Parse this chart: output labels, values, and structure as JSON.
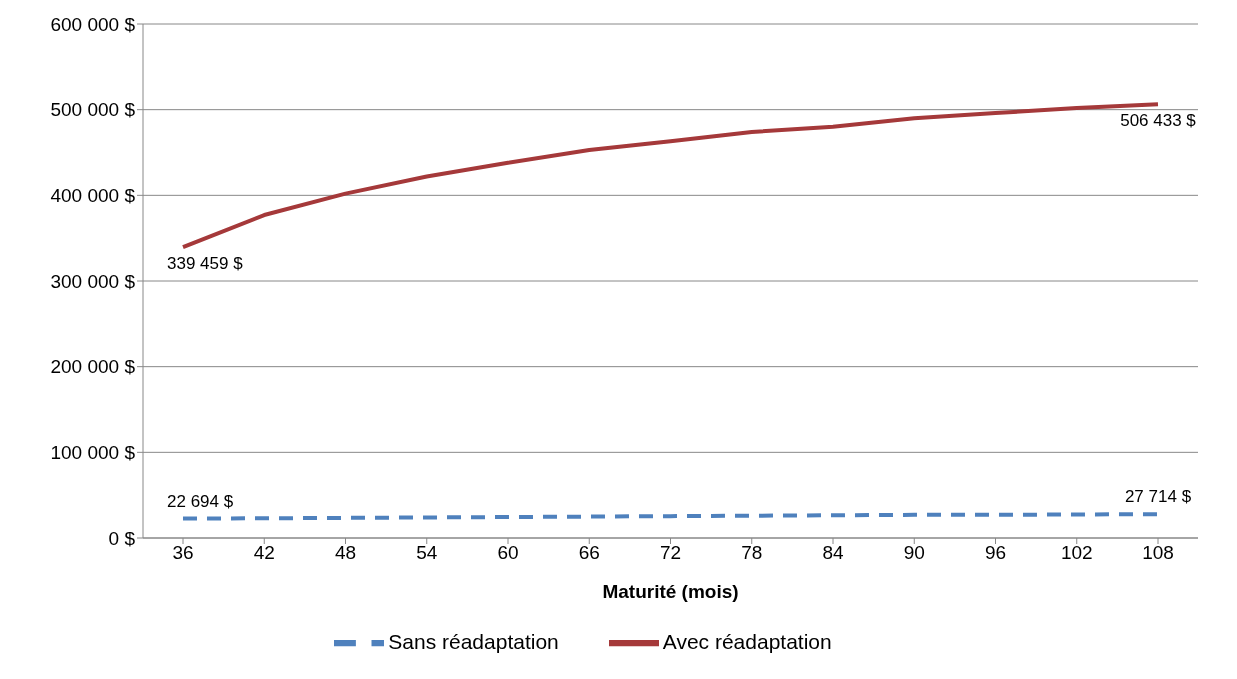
{
  "chart_data": {
    "type": "line",
    "xlabel": "Maturité (mois)",
    "categories": [
      "36",
      "42",
      "48",
      "54",
      "60",
      "66",
      "72",
      "78",
      "84",
      "90",
      "96",
      "102",
      "108"
    ],
    "series": [
      {
        "name": "Sans réadaptation",
        "color": "#4f81bd",
        "line_style": "dashed",
        "values": [
          22694,
          23000,
          23500,
          24000,
          24500,
          25000,
          25500,
          26000,
          26500,
          27000,
          27000,
          27500,
          27714
        ],
        "value_labels": [
          "22 694 $",
          null,
          null,
          null,
          null,
          null,
          null,
          null,
          null,
          null,
          null,
          null,
          "27 714 $"
        ]
      },
      {
        "name": "Avec réadaptation",
        "color": "#a5393a",
        "line_style": "solid",
        "values": [
          339459,
          377000,
          402000,
          422000,
          438000,
          453000,
          463000,
          474000,
          480000,
          490000,
          496000,
          502000,
          506433
        ],
        "value_labels": [
          "339 459 $",
          null,
          null,
          null,
          null,
          null,
          null,
          null,
          null,
          null,
          null,
          null,
          "506 433 $"
        ]
      }
    ],
    "ylim": [
      0,
      600000
    ],
    "yticks": [
      {
        "value": 0,
        "label": "0 $"
      },
      {
        "value": 100000,
        "label": "100 000 $"
      },
      {
        "value": 200000,
        "label": "200 000 $"
      },
      {
        "value": 300000,
        "label": "300 000 $"
      },
      {
        "value": 400000,
        "label": "400 000 $"
      },
      {
        "value": 500000,
        "label": "500 000 $"
      },
      {
        "value": 600000,
        "label": "600 000 $"
      }
    ],
    "grid": "y",
    "legend": "bottom",
    "marker": "none"
  }
}
